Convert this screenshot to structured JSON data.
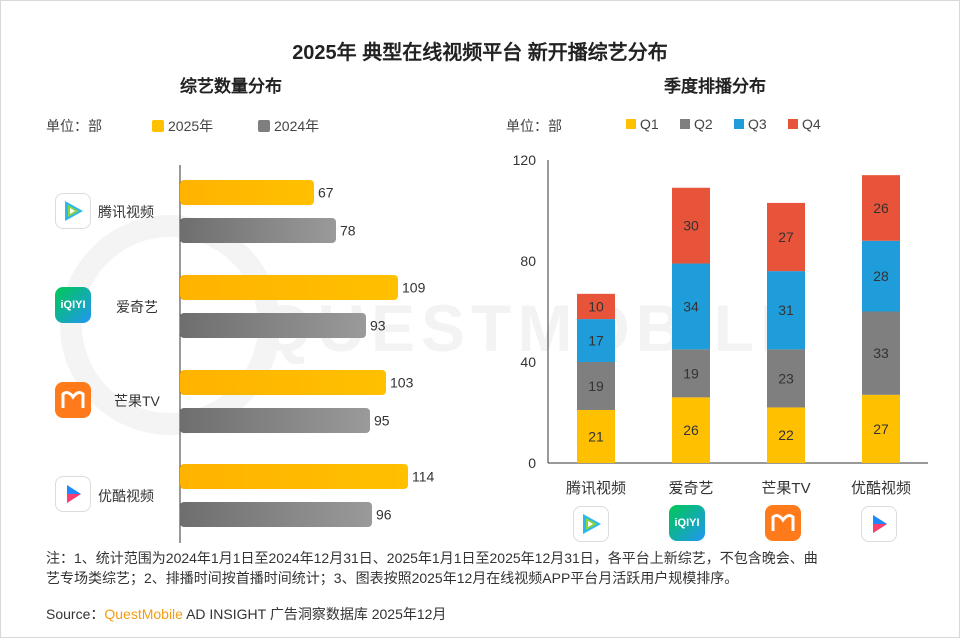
{
  "page": {
    "title": "2025年 典型在线视频平台 新开播综艺分布",
    "note_line1": "注：1、统计范围为2024年1月1日至2024年12月31日、2025年1月1日至2025年12月31日，各平台上新综艺，不包含晚会、曲",
    "note_line2": "艺专场类综艺；2、排播时间按首播时间统计；3、图表按照2025年12月在线视频APP平台月活跃用户规模排序。",
    "source_prefix": "Source：",
    "source_brand": "QuestMobile",
    "source_suffix": " AD INSIGHT 广告洞察数据库 2025年12月",
    "watermark": "QUESTMOBILE"
  },
  "platforms": [
    {
      "name": "腾讯视频",
      "icon": "tencent-video-logo-icon"
    },
    {
      "name": "爱奇艺",
      "icon": "iqiyi-logo-icon",
      "logo_text": "iQIYI"
    },
    {
      "name": "芒果TV",
      "icon": "mango-tv-logo-icon"
    },
    {
      "name": "优酷视频",
      "icon": "youku-logo-icon"
    }
  ],
  "left": {
    "subtitle": "综艺数量分布",
    "unit_label": "单位：部",
    "legend": [
      {
        "name": "2025年",
        "color": "#FFC000"
      },
      {
        "name": "2024年",
        "color": "#7F7F7F"
      }
    ]
  },
  "right": {
    "subtitle": "季度排播分布",
    "unit_label": "单位：部",
    "legend": [
      {
        "name": "Q1",
        "color": "#FFC000"
      },
      {
        "name": "Q2",
        "color": "#7F7F7F"
      },
      {
        "name": "Q3",
        "color": "#1F9DDB"
      },
      {
        "name": "Q4",
        "color": "#E8543A"
      }
    ]
  },
  "chart_data": [
    {
      "type": "bar",
      "orientation": "horizontal",
      "title": "综艺数量分布",
      "categories": [
        "腾讯视频",
        "爱奇艺",
        "芒果TV",
        "优酷视频"
      ],
      "series": [
        {
          "name": "2025年",
          "values": [
            67,
            109,
            103,
            114
          ]
        },
        {
          "name": "2024年",
          "values": [
            78,
            93,
            95,
            96
          ]
        }
      ],
      "xlim": [
        0,
        120
      ],
      "unit": "部"
    },
    {
      "type": "bar",
      "stacked": true,
      "title": "季度排播分布",
      "categories": [
        "腾讯视频",
        "爱奇艺",
        "芒果TV",
        "优酷视频"
      ],
      "series": [
        {
          "name": "Q1",
          "values": [
            21,
            26,
            22,
            27
          ]
        },
        {
          "name": "Q2",
          "values": [
            19,
            19,
            23,
            33
          ]
        },
        {
          "name": "Q3",
          "values": [
            17,
            34,
            31,
            28
          ]
        },
        {
          "name": "Q4",
          "values": [
            10,
            30,
            27,
            26
          ]
        }
      ],
      "ylim": [
        0,
        120
      ],
      "yticks": [
        0,
        40,
        80,
        120
      ],
      "unit": "部"
    }
  ]
}
